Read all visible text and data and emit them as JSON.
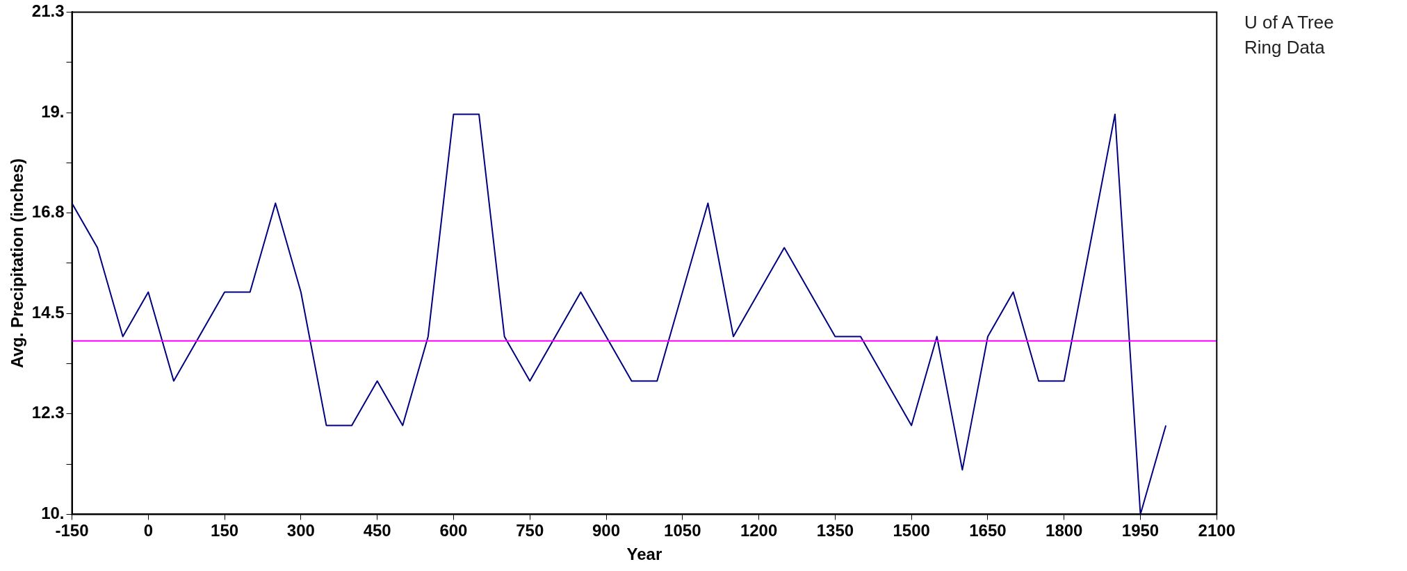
{
  "chart_data": {
    "type": "line",
    "xlabel": "Year",
    "ylabel": "Avg. Precipitation (inches)",
    "annotations": [
      "U of A Tree Ring Data"
    ],
    "x": [
      -150,
      -100,
      -50,
      0,
      50,
      100,
      150,
      200,
      250,
      300,
      350,
      400,
      450,
      500,
      550,
      600,
      650,
      700,
      750,
      800,
      850,
      900,
      950,
      1000,
      1050,
      1100,
      1150,
      1200,
      1250,
      1300,
      1350,
      1400,
      1450,
      1500,
      1550,
      1600,
      1650,
      1700,
      1750,
      1800,
      1850,
      1900,
      1950,
      2000
    ],
    "series": [
      {
        "color": "#000080",
        "values": [
          17,
          16,
          14,
          15,
          13,
          14,
          15,
          15,
          17,
          15,
          12,
          12,
          13,
          12,
          14,
          19,
          19,
          14,
          13,
          14,
          15,
          14,
          13,
          13,
          15,
          17,
          14,
          15,
          16,
          15,
          14,
          14,
          13,
          12,
          14,
          11,
          14,
          15,
          13,
          13,
          16,
          19,
          10,
          12
        ]
      }
    ],
    "xlim": [
      -150,
      2100
    ],
    "xticks": [
      -150,
      0,
      150,
      300,
      450,
      600,
      750,
      900,
      1050,
      1200,
      1350,
      1500,
      1650,
      1800,
      1950,
      2100
    ],
    "ylim": [
      10,
      21.3
    ],
    "yticks": [
      {
        "value": 10,
        "label": "10."
      },
      {
        "value": 11.13,
        "label": null
      },
      {
        "value": 12.26,
        "label": "12.3"
      },
      {
        "value": 13.39,
        "label": null
      },
      {
        "value": 14.52,
        "label": "14.5"
      },
      {
        "value": 15.65,
        "label": null
      },
      {
        "value": 16.78,
        "label": "16.8"
      },
      {
        "value": 17.91,
        "label": null
      },
      {
        "value": 19.04,
        "label": "19."
      },
      {
        "value": 20.17,
        "label": null
      },
      {
        "value": 21.3,
        "label": "21.3"
      }
    ],
    "ref_lines": [
      {
        "axis": "y",
        "value": 13.9,
        "color": "#ff00ff"
      }
    ],
    "grid": false,
    "legend": false,
    "marker": "none",
    "line_style": "solid"
  }
}
